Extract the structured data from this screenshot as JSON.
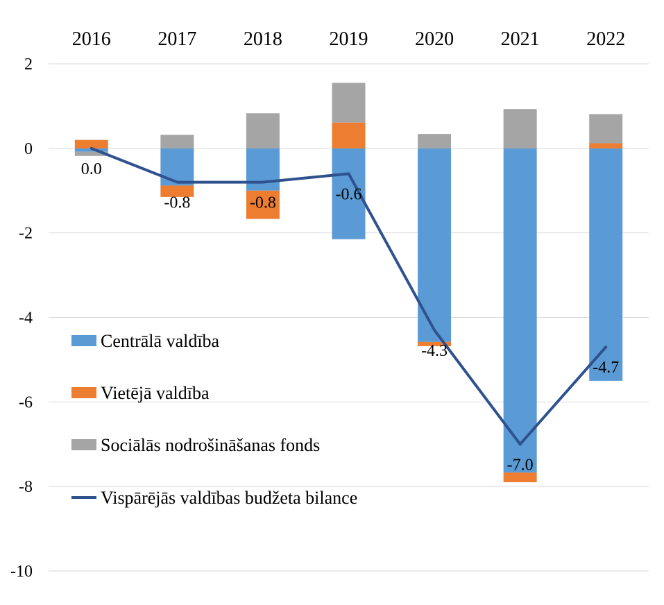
{
  "chart_data": {
    "type": "bar",
    "stacked": true,
    "categories": [
      "2016",
      "2017",
      "2018",
      "2019",
      "2020",
      "2021",
      "2022"
    ],
    "series": [
      {
        "name": "Centrālā valdība",
        "type": "bar",
        "color": "#5B9BD5",
        "values": [
          -0.08,
          -0.88,
          -1.0,
          -2.15,
          -4.58,
          -7.67,
          -5.5
        ]
      },
      {
        "name": "Vietējā valdība",
        "type": "bar",
        "color": "#ED7D31",
        "values": [
          0.2,
          -0.27,
          -0.67,
          0.61,
          -0.1,
          -0.23,
          0.12
        ]
      },
      {
        "name": "Sociālās nodrošināšanas fonds",
        "type": "bar",
        "color": "#A5A5A5",
        "values": [
          -0.1,
          0.32,
          0.83,
          0.94,
          0.34,
          0.93,
          0.69
        ]
      },
      {
        "name": "Vispārējās valdības budžeta bilance",
        "type": "line",
        "color": "#2F528F",
        "values": [
          0.0,
          -0.8,
          -0.8,
          -0.6,
          -4.3,
          -7.0,
          -4.7
        ],
        "labels": [
          "0.0",
          "-0.8",
          "-0.8",
          "-0.6",
          "-4.3",
          "-7.0",
          "-4.7"
        ]
      }
    ],
    "ylim": [
      -10,
      2
    ],
    "yticks": [
      "2",
      "0",
      "-2",
      "-4",
      "-6",
      "-8",
      "-10"
    ],
    "ytick_values": [
      2,
      0,
      -2,
      -4,
      -6,
      -8,
      -10
    ],
    "xaxis_position": "top",
    "grid": true,
    "legend_position": "lower-left inside plot"
  }
}
